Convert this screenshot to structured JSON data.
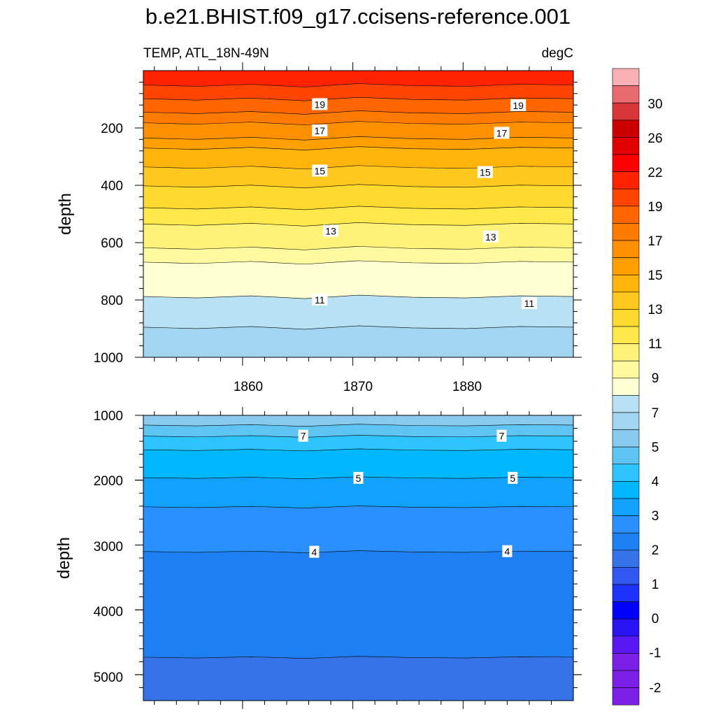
{
  "chart_data": {
    "type": "contour",
    "title": "b.e21.BHIST.f09_g17.ccisens-reference.001",
    "left_string": "TEMP, ATL_18N-49N",
    "right_string": "degC",
    "x_range": [
      1851,
      1890
    ],
    "x_ticks": [
      "1860",
      "1870",
      "1880"
    ],
    "panels": [
      {
        "name": "upper",
        "ylabel": "depth",
        "ylim": [
          0,
          1000
        ],
        "y_ticks": [
          "200",
          "400",
          "600",
          "800",
          "1000"
        ],
        "contour_labels": [
          {
            "text": "19",
            "year": 1867.0,
            "depth": 118
          },
          {
            "text": "19",
            "year": 1885.0,
            "depth": 122
          },
          {
            "text": "17",
            "year": 1867.0,
            "depth": 210
          },
          {
            "text": "17",
            "year": 1883.5,
            "depth": 218
          },
          {
            "text": "15",
            "year": 1867.0,
            "depth": 350
          },
          {
            "text": "15",
            "year": 1882.0,
            "depth": 355
          },
          {
            "text": "13",
            "year": 1868.0,
            "depth": 560
          },
          {
            "text": "13",
            "year": 1882.5,
            "depth": 580
          },
          {
            "text": "11",
            "year": 1867.0,
            "depth": 800
          },
          {
            "text": "11",
            "year": 1886.0,
            "depth": 812
          }
        ]
      },
      {
        "name": "lower",
        "ylabel": "depth",
        "ylim": [
          1000,
          5400
        ],
        "y_ticks": [
          "1000",
          "2000",
          "3000",
          "4000",
          "5000"
        ],
        "contour_labels": [
          {
            "text": "7",
            "year": 1865.5,
            "depth": 1320
          },
          {
            "text": "7",
            "year": 1883.5,
            "depth": 1320
          },
          {
            "text": "5",
            "year": 1870.5,
            "depth": 1970
          },
          {
            "text": "5",
            "year": 1884.5,
            "depth": 1970
          },
          {
            "text": "4",
            "year": 1866.5,
            "depth": 3110
          },
          {
            "text": "4",
            "year": 1884.0,
            "depth": 3100
          }
        ]
      }
    ],
    "colorbar": {
      "labels": [
        "30",
        "26",
        "22",
        "19",
        "17",
        "15",
        "13",
        "11",
        "9",
        "7",
        "5",
        "4",
        "3",
        "2",
        "1",
        "0",
        "-1",
        "-2"
      ],
      "colors": [
        "#F8B0B4",
        "#E86C6E",
        "#D83638",
        "#CB0000",
        "#E20000",
        "#FF0000",
        "#FF2200",
        "#FF4400",
        "#FF6600",
        "#FF7B00",
        "#FF9000",
        "#FFA000",
        "#FFB40C",
        "#FFC81E",
        "#FFDA2E",
        "#FFE84A",
        "#FFF278",
        "#FFFAA0",
        "#FFFFD4",
        "#B8E2F4",
        "#A2D6F0",
        "#88CBEE",
        "#5EC4F2",
        "#2EC4FF",
        "#00B8FF",
        "#11A2FF",
        "#2B90FF",
        "#1E80F0",
        "#3474E8",
        "#3058F0",
        "#1C32F8",
        "#0000FF",
        "#2A14F4",
        "#5A18F0",
        "#7C20E8"
      ]
    }
  }
}
